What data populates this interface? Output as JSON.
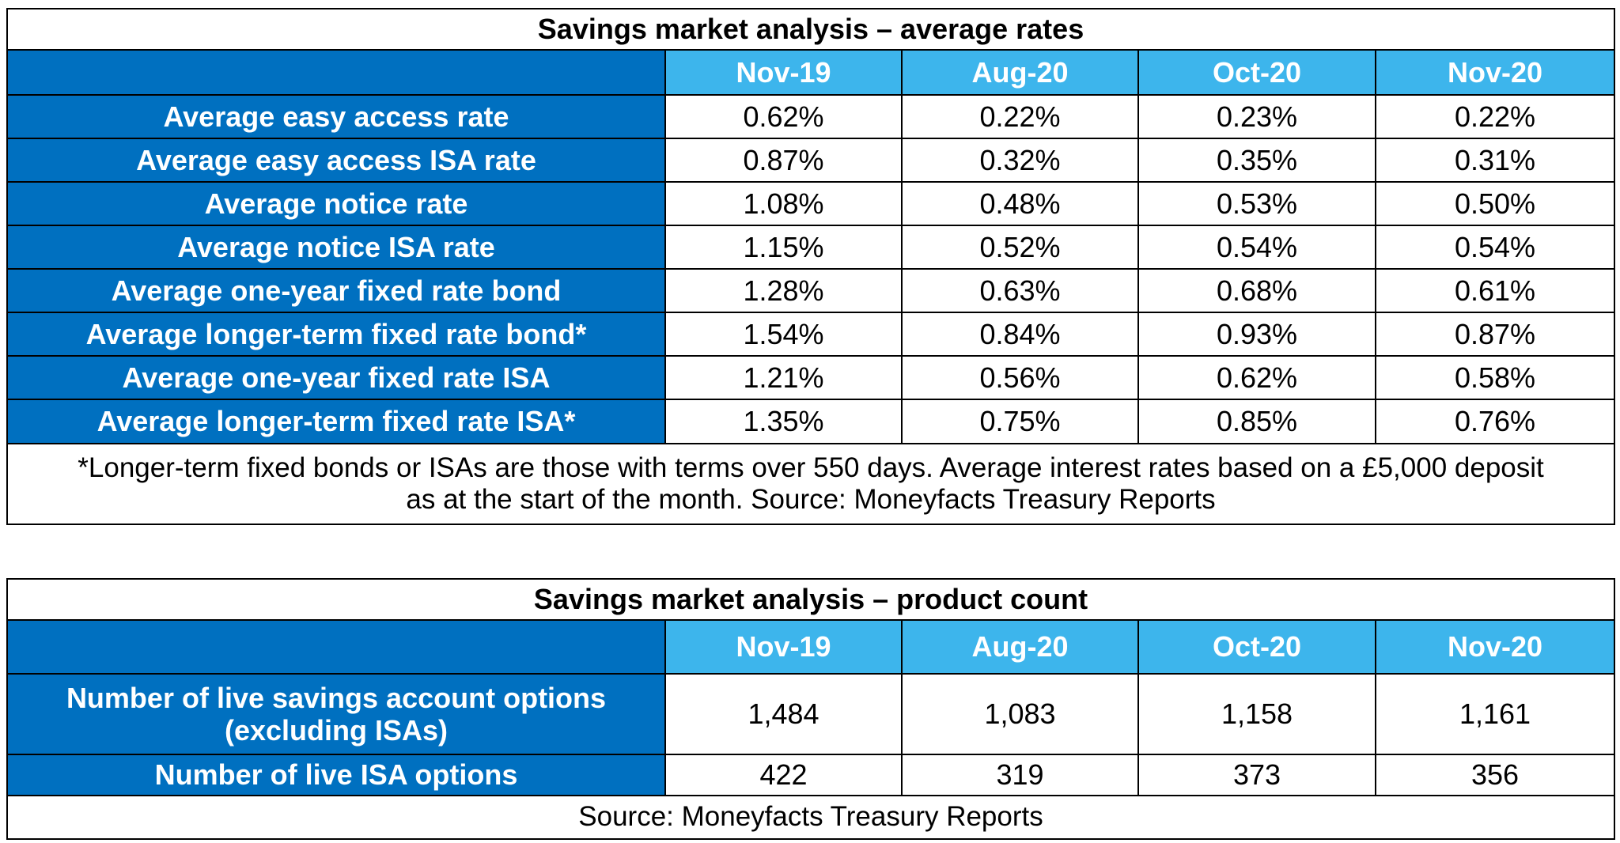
{
  "tables": [
    {
      "title": "Savings market analysis – average rates",
      "headers": [
        "Nov-19",
        "Aug-20",
        "Oct-20",
        "Nov-20"
      ],
      "rows": [
        {
          "label": "Average easy access rate",
          "values": [
            "0.62%",
            "0.22%",
            "0.23%",
            "0.22%"
          ]
        },
        {
          "label": "Average easy access ISA rate",
          "values": [
            "0.87%",
            "0.32%",
            "0.35%",
            "0.31%"
          ]
        },
        {
          "label": "Average notice rate",
          "values": [
            "1.08%",
            "0.48%",
            "0.53%",
            "0.50%"
          ]
        },
        {
          "label": "Average notice ISA rate",
          "values": [
            "1.15%",
            "0.52%",
            "0.54%",
            "0.54%"
          ]
        },
        {
          "label": "Average one-year fixed rate bond",
          "values": [
            "1.28%",
            "0.63%",
            "0.68%",
            "0.61%"
          ]
        },
        {
          "label": "Average longer-term fixed rate bond*",
          "values": [
            "1.54%",
            "0.84%",
            "0.93%",
            "0.87%"
          ]
        },
        {
          "label": "Average one-year fixed rate ISA",
          "values": [
            "1.21%",
            "0.56%",
            "0.62%",
            "0.58%"
          ]
        },
        {
          "label": "Average longer-term fixed rate ISA*",
          "values": [
            "1.35%",
            "0.75%",
            "0.85%",
            "0.76%"
          ]
        }
      ],
      "note": "*Longer-term fixed bonds or ISAs are those with terms over 550 days. Average interest rates based on a £5,000 deposit as at the start of the month. Source: Moneyfacts Treasury Reports"
    },
    {
      "title": "Savings market analysis – product count",
      "headers": [
        "Nov-19",
        "Aug-20",
        "Oct-20",
        "Nov-20"
      ],
      "rows": [
        {
          "label": "Number of live savings account options (excluding ISAs)",
          "values": [
            "1,484",
            "1,083",
            "1,158",
            "1,161"
          ]
        },
        {
          "label": "Number of live ISA options",
          "values": [
            "422",
            "319",
            "373",
            "356"
          ]
        }
      ],
      "note": "Source: Moneyfacts Treasury Reports"
    }
  ]
}
